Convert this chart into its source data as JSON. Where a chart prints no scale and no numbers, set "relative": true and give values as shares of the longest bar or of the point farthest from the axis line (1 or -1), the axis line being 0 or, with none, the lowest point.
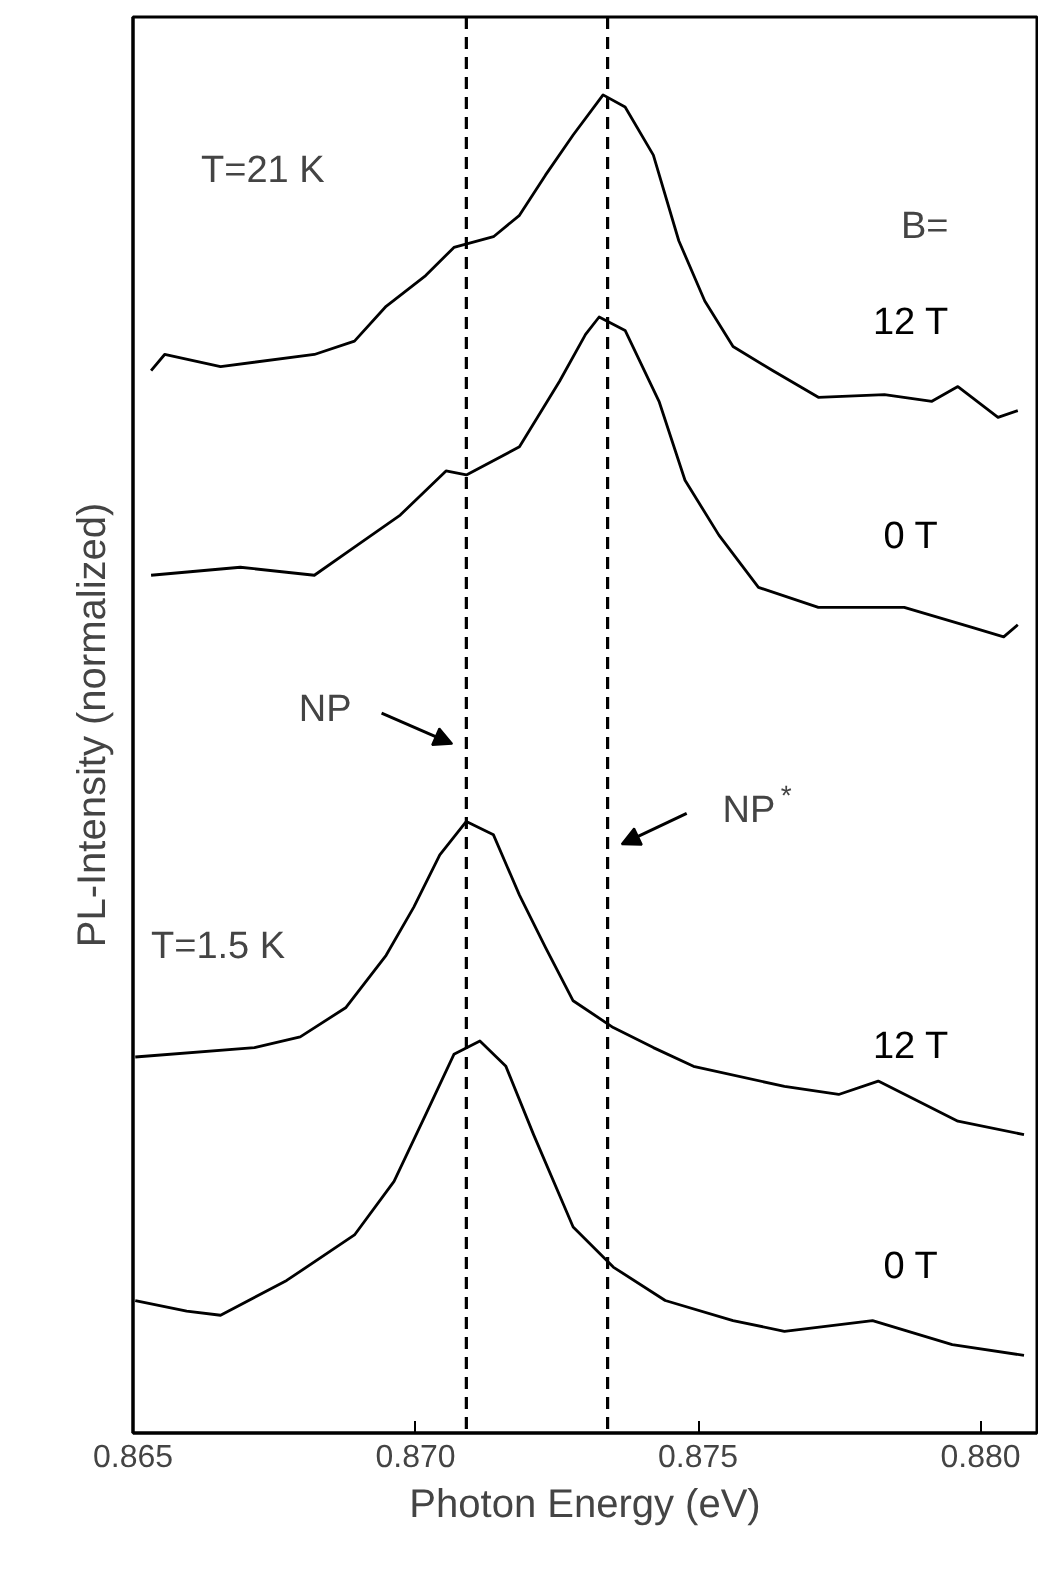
{
  "chart_data": {
    "type": "line",
    "relative": true,
    "xlabel": "Photon Energy (eV)",
    "ylabel": "PL-Intensity (normalized)",
    "xlim": [
      0.865,
      0.881
    ],
    "xticks": [
      {
        "value": 0.865,
        "label": "0.865"
      },
      {
        "value": 0.87,
        "label": "0.870"
      },
      {
        "value": 0.875,
        "label": "0.875"
      },
      {
        "value": 0.88,
        "label": "0.880"
      }
    ],
    "grid": false,
    "marker": "none",
    "line_style": "solid",
    "series": [
      {
        "name": "12 T",
        "color": "#000000",
        "x": [
          0.86532,
          0.86556,
          0.86655,
          0.86821,
          0.86892,
          0.86948,
          0.87018,
          0.87068,
          0.87138,
          0.87184,
          0.8723,
          0.87279,
          0.87332,
          0.87371,
          0.87421,
          0.87466,
          0.87512,
          0.87562,
          0.87632,
          0.87713,
          0.8783,
          0.87914,
          0.8796,
          0.88031,
          0.88066
        ],
        "values": [
          0.794,
          0.806,
          0.797,
          0.806,
          0.816,
          0.842,
          0.865,
          0.886,
          0.894,
          0.91,
          0.94,
          0.97,
          1.0,
          0.991,
          0.955,
          0.891,
          0.846,
          0.812,
          0.794,
          0.774,
          0.776,
          0.771,
          0.782,
          0.759,
          0.764
        ]
      },
      {
        "name": "0 T",
        "color": "#000000",
        "x": [
          0.86532,
          0.8669,
          0.86821,
          0.86892,
          0.86973,
          0.87054,
          0.8709,
          0.87184,
          0.87255,
          0.87301,
          0.87325,
          0.87371,
          0.87431,
          0.87477,
          0.87537,
          0.87607,
          0.87713,
          0.87865,
          0.87985,
          0.88041,
          0.88066
        ],
        "values": [
          0.641,
          0.647,
          0.641,
          0.662,
          0.686,
          0.719,
          0.716,
          0.737,
          0.786,
          0.821,
          0.834,
          0.824,
          0.771,
          0.712,
          0.671,
          0.632,
          0.617,
          0.617,
          0.602,
          0.595,
          0.604
        ]
      },
      {
        "name": "12 T",
        "color": "#000000",
        "x": [
          0.86504,
          0.86715,
          0.86796,
          0.86877,
          0.86948,
          0.86997,
          0.87043,
          0.8709,
          0.87138,
          0.87184,
          0.8723,
          0.87279,
          0.8735,
          0.87421,
          0.87492,
          0.87653,
          0.87749,
          0.87819,
          0.8789,
          0.8796,
          0.88077
        ],
        "values": [
          0.281,
          0.288,
          0.296,
          0.318,
          0.357,
          0.393,
          0.432,
          0.457,
          0.447,
          0.402,
          0.363,
          0.323,
          0.303,
          0.288,
          0.274,
          0.259,
          0.253,
          0.263,
          0.248,
          0.233,
          0.223
        ]
      },
      {
        "name": "0 T",
        "color": "#000000",
        "x": [
          0.86504,
          0.86595,
          0.86655,
          0.86772,
          0.86892,
          0.86962,
          0.87018,
          0.87068,
          0.87114,
          0.8716,
          0.87209,
          0.87279,
          0.8735,
          0.87442,
          0.87562,
          0.87653,
          0.87809,
          0.8795,
          0.88077
        ],
        "values": [
          0.099,
          0.091,
          0.088,
          0.114,
          0.148,
          0.188,
          0.238,
          0.283,
          0.293,
          0.274,
          0.223,
          0.154,
          0.124,
          0.099,
          0.084,
          0.076,
          0.084,
          0.066,
          0.058
        ]
      }
    ],
    "ref_lines": [
      {
        "axis": "x",
        "value": 0.8709,
        "label": "NP",
        "color": "#000000",
        "line_style": "dashed"
      },
      {
        "axis": "x",
        "value": 0.8734,
        "label": "NP$^{*}$",
        "color": "#000000",
        "line_style": "dashed"
      }
    ],
    "annotations": [
      "T=21 K",
      "B=",
      "T=1.5 K"
    ]
  }
}
